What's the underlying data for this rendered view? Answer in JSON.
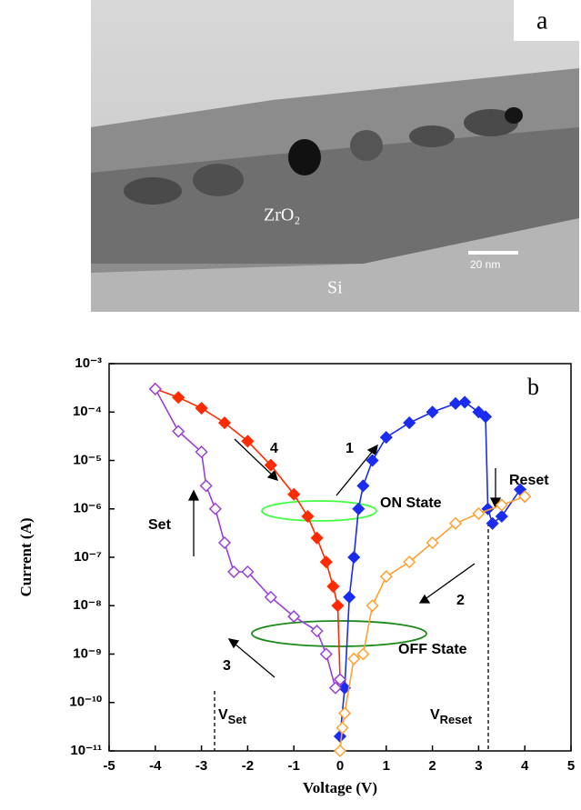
{
  "panel_a": {
    "label": "a",
    "layer_label": "ZrO₂",
    "substrate_label": "Si",
    "scale_bar": "20 nm"
  },
  "chart_data": {
    "type": "line",
    "panel_label": "b",
    "x_label": "Voltage (V)",
    "y_label": "Current (A)",
    "xlim": [
      -5,
      5
    ],
    "xticks": [
      -5,
      -4,
      -3,
      -2,
      -1,
      0,
      1,
      2,
      3,
      4,
      5
    ],
    "ylim": [
      1e-11,
      0.001
    ],
    "log_y": true,
    "yticks": [
      {
        "value": 1e-11,
        "label": "10⁻¹¹"
      },
      {
        "value": 1e-10,
        "label": "10⁻¹⁰"
      },
      {
        "value": 1e-09,
        "label": "10⁻⁹"
      },
      {
        "value": 1e-08,
        "label": "10⁻⁸"
      },
      {
        "value": 1e-07,
        "label": "10⁻⁷"
      },
      {
        "value": 1e-06,
        "label": "10⁻⁶"
      },
      {
        "value": 1e-05,
        "label": "10⁻⁵"
      },
      {
        "value": 0.0001,
        "label": "10⁻⁴"
      },
      {
        "value": 0.001,
        "label": "10⁻³"
      }
    ],
    "series": [
      {
        "color": "#ff2a00",
        "marker": "filled",
        "x": [
          -4,
          -3.5,
          -3,
          -2.5,
          -2,
          -1.5,
          -1,
          -0.7,
          -0.5,
          -0.3,
          -0.15,
          -0.05,
          0
        ],
        "values": [
          0.0003,
          0.0002,
          0.00012,
          6e-05,
          2.5e-05,
          8e-06,
          2e-06,
          7e-07,
          2.5e-07,
          8e-08,
          2.5e-08,
          1e-08,
          3e-10
        ]
      },
      {
        "color": "#1a2cf0",
        "marker": "filled",
        "x": [
          0,
          0.1,
          0.2,
          0.3,
          0.4,
          0.5,
          0.7,
          1,
          1.5,
          2,
          2.5,
          2.7,
          3,
          3.15,
          3.2,
          3.3,
          3.5,
          3.9,
          4
        ],
        "values": [
          2e-11,
          2e-10,
          1.5e-08,
          1e-07,
          1e-06,
          3e-06,
          1e-05,
          3e-05,
          6e-05,
          0.0001,
          0.00015,
          0.00016,
          0.0001,
          8e-05,
          1e-06,
          5e-07,
          7e-07,
          2.5e-06,
          1.8e-06
        ]
      },
      {
        "color": "#ffa030",
        "marker": "open",
        "x": [
          4,
          3.5,
          3,
          2.5,
          2,
          1.5,
          1,
          0.7,
          0.5,
          0.3,
          0.1,
          0.05,
          0
        ],
        "values": [
          1.8e-06,
          1.2e-06,
          8e-07,
          5e-07,
          2e-07,
          8e-08,
          4e-08,
          1e-08,
          1e-09,
          8e-10,
          6e-11,
          3e-11,
          1e-11
        ]
      },
      {
        "color": "#9a40d8",
        "marker": "open",
        "x": [
          0,
          -0.1,
          -0.3,
          -0.5,
          -1,
          -1.5,
          -2,
          -2.3,
          -2.5,
          -2.7,
          -2.9,
          -3,
          -3.5,
          -4
        ],
        "values": [
          3e-10,
          2e-10,
          1e-09,
          3e-09,
          6e-09,
          1.5e-08,
          5e-08,
          5e-08,
          2e-07,
          1e-06,
          3e-06,
          1.5e-05,
          4e-05,
          0.0003
        ]
      }
    ],
    "annotations": {
      "sweep_1": "1",
      "sweep_2": "2",
      "sweep_3": "3",
      "sweep_4": "4",
      "reset": "Reset",
      "set": "Set",
      "on_state": "ON State",
      "off_state": "OFF State",
      "v_set": {
        "symbol": "V",
        "subscript": "Set"
      },
      "v_reset": {
        "symbol": "V",
        "subscript": "Reset"
      }
    }
  }
}
